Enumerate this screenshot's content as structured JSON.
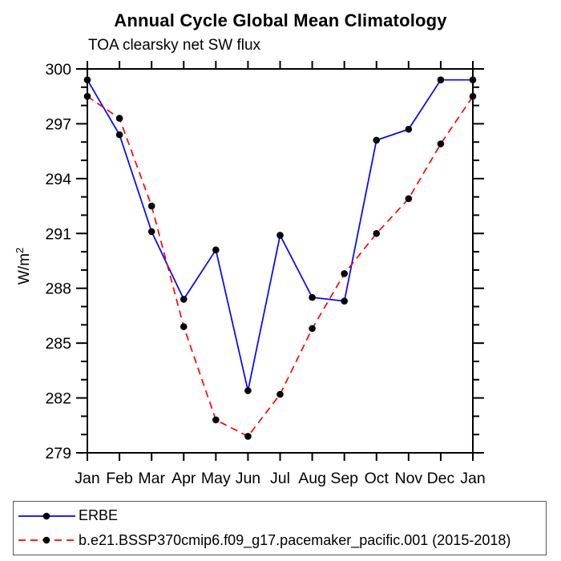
{
  "chart": {
    "title": "Annual Cycle Global Mean Climatology",
    "subtitle": "TOA clearsky net SW flux",
    "ylabel_main": "W/m",
    "ylabel_sup": "2"
  },
  "chart_data": {
    "type": "line",
    "title": "Annual Cycle Global Mean Climatology",
    "subtitle": "TOA clearsky net SW flux",
    "ylabel": "W/m^2",
    "xlabel": "",
    "categories": [
      "Jan",
      "Feb",
      "Mar",
      "Apr",
      "May",
      "Jun",
      "Jul",
      "Aug",
      "Sep",
      "Oct",
      "Nov",
      "Dec",
      "Jan"
    ],
    "series": [
      {
        "name": "ERBE",
        "color": "#0000ff",
        "line_style": "solid",
        "marker": "filled-black-circle",
        "values": [
          299.4,
          296.4,
          291.1,
          287.4,
          290.1,
          282.4,
          290.9,
          287.5,
          287.3,
          296.1,
          296.7,
          299.4,
          299.4
        ]
      },
      {
        "name": "b.e21.BSSP370cmip6.f09_g17.pacemaker_pacific.001 (2015-2018)",
        "color": "#ff0000",
        "line_style": "dashed",
        "marker": "filled-black-circle",
        "values": [
          298.5,
          297.3,
          292.5,
          285.9,
          280.8,
          279.9,
          282.2,
          285.8,
          288.8,
          291.0,
          292.9,
          295.9,
          298.5
        ]
      }
    ],
    "ylim": [
      279,
      300
    ],
    "yticks": [
      279,
      282,
      285,
      288,
      291,
      294,
      297,
      300
    ],
    "ytick_minor_step": 1,
    "grid": false,
    "axis_color": "#000000",
    "marker_color": "#000000",
    "legend_position": "bottom-box"
  }
}
